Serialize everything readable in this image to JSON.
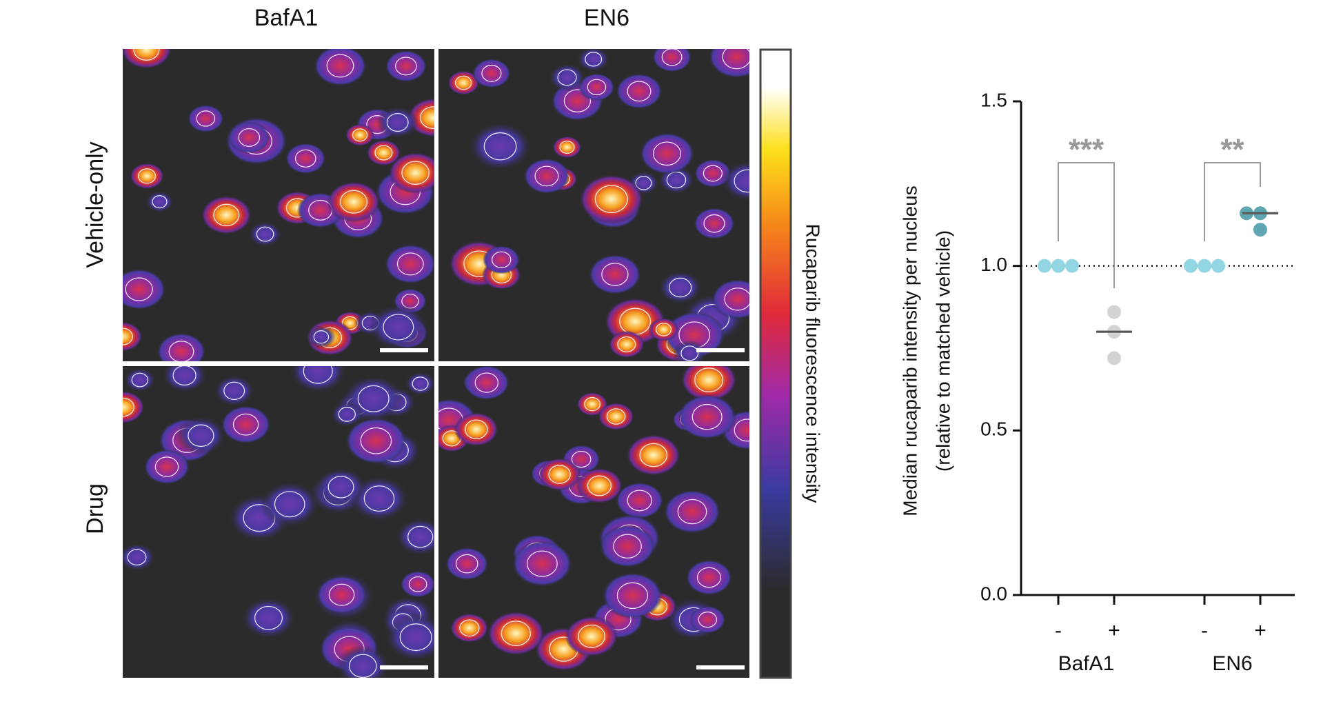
{
  "figure": {
    "column_labels": [
      "BafA1",
      "EN6"
    ],
    "row_labels": [
      "Vehicle-only",
      "Drug"
    ],
    "colorbar_label": "Rucaparib fluorescence intensity"
  },
  "chart_data": {
    "type": "dot",
    "ylabel": "Median rucaparib intensity per nucleus",
    "ylabel2": "(relative to matched vehicle)",
    "categories": [
      "-",
      "+",
      "-",
      "+"
    ],
    "group_labels": [
      "BafA1",
      "EN6"
    ],
    "groups": [
      {
        "values": [
          1,
          1,
          1
        ],
        "median": 1,
        "color": "#93d6e3"
      },
      {
        "values": [
          0.86,
          0.8,
          0.72
        ],
        "median": 0.8,
        "color": "#d3d3d3"
      },
      {
        "values": [
          1,
          1,
          1
        ],
        "median": 1,
        "color": "#93d6e3"
      },
      {
        "values": [
          1.16,
          1.16,
          1.11
        ],
        "median": 1.16,
        "color": "#5fa6b2"
      }
    ],
    "annotations": [
      "***",
      "**"
    ],
    "reference_line": 1,
    "ylim": [
      0,
      1.5
    ],
    "yticks": [
      {
        "value": 0,
        "label": "0.0"
      },
      0.5,
      {
        "value": 1,
        "label": "1.0"
      },
      1.5
    ]
  }
}
